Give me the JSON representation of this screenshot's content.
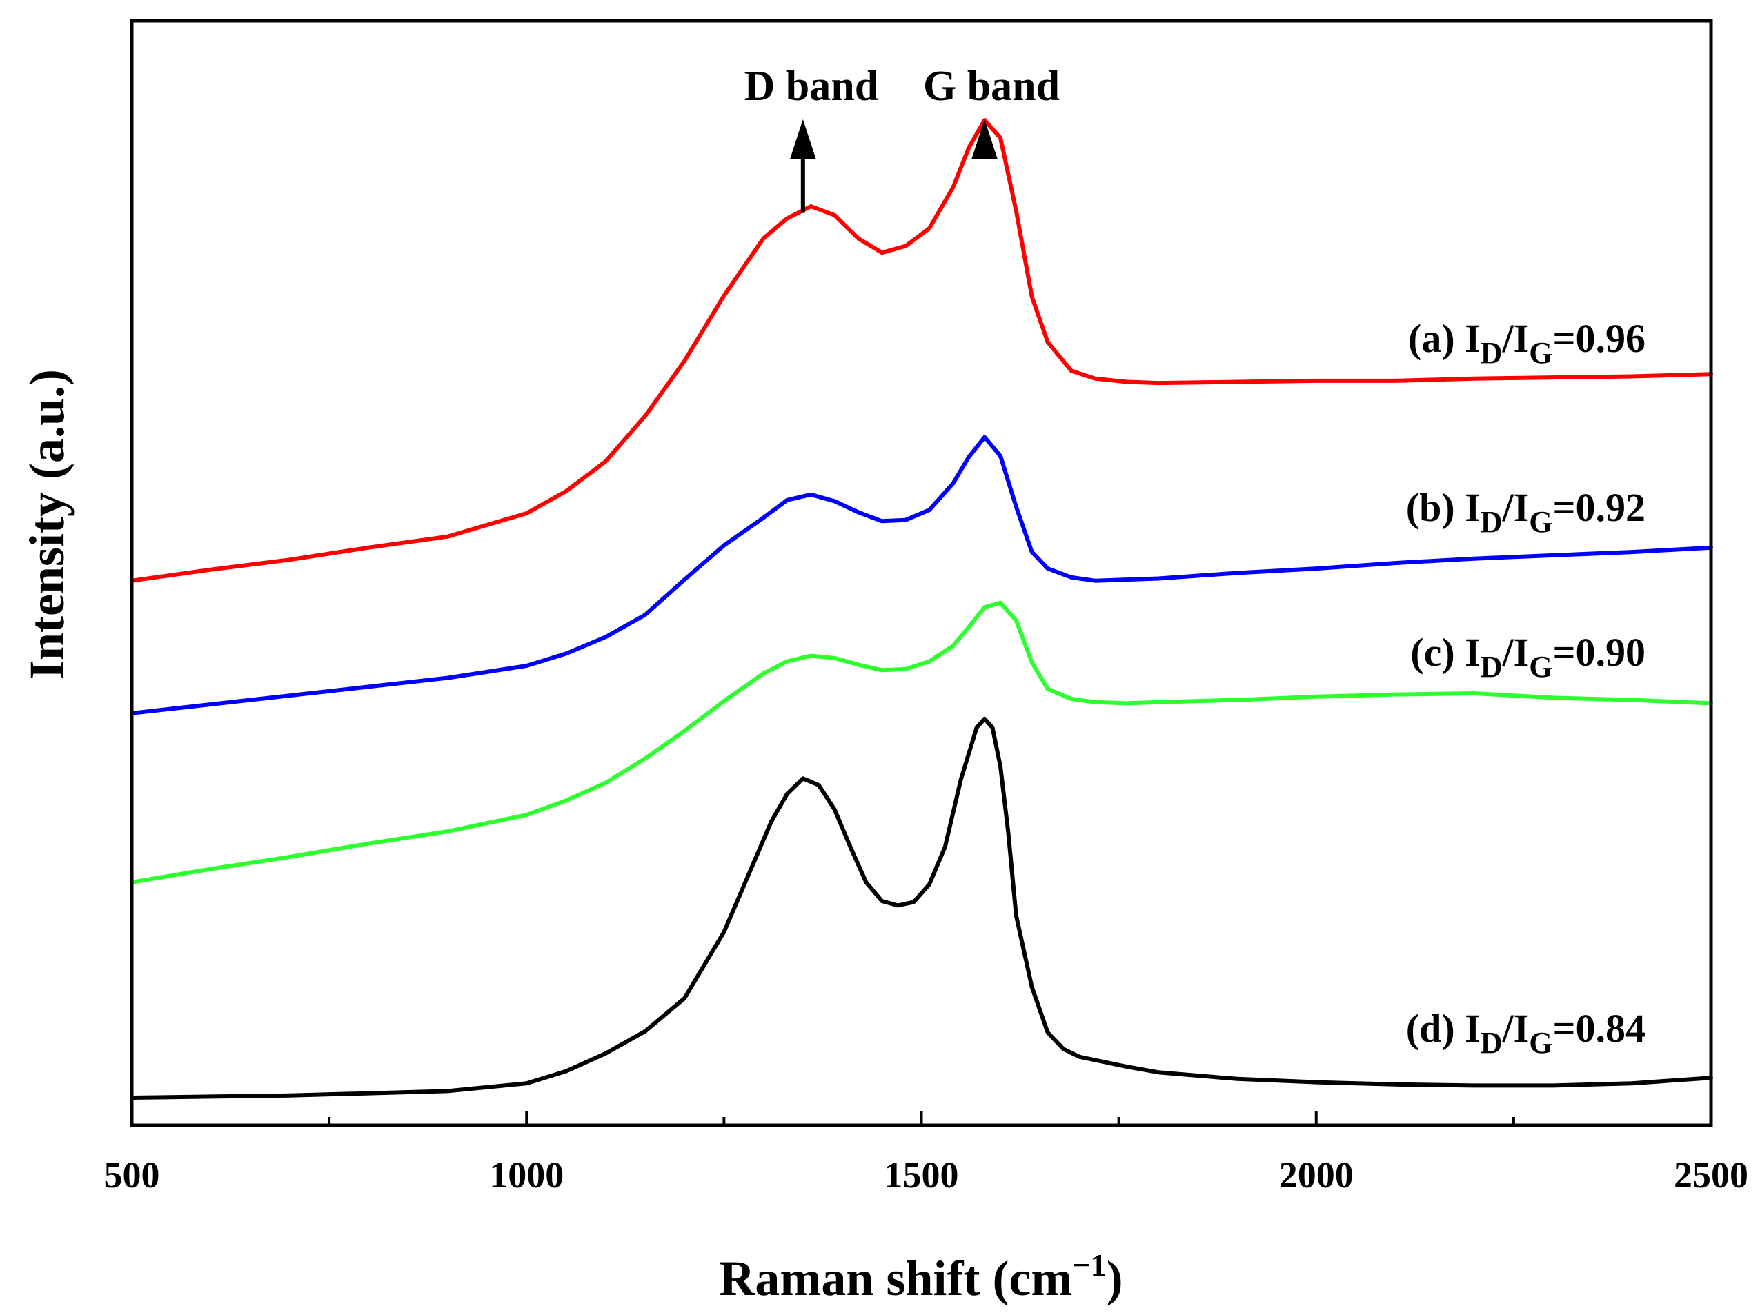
{
  "chart_data": {
    "type": "line",
    "title": "",
    "xlabel": "Raman shift (cm",
    "xlabel_sup": "−1",
    "xlabel_close": ")",
    "ylabel": "Intensity (a.u.)",
    "xlim": [
      500,
      2500
    ],
    "ylim": [
      0,
      100
    ],
    "xticks": [
      500,
      1000,
      1500,
      2000,
      2500
    ],
    "minor_xticks": [
      750,
      1250,
      1750,
      2250
    ],
    "yticks_shown": false,
    "grid": false,
    "annotations": [
      {
        "text": "D band",
        "x": 1350
      },
      {
        "text": "G band",
        "x": 1580
      }
    ],
    "series": [
      {
        "name": "(a) ID/IG=0.96",
        "label_prefix": "(a) I",
        "sub1": "D",
        "mid": "/I",
        "sub2": "G",
        "label_value": "=0.96",
        "color": "#ff0000",
        "x": [
          500,
          600,
          700,
          800,
          900,
          1000,
          1050,
          1100,
          1150,
          1200,
          1250,
          1300,
          1330,
          1360,
          1390,
          1420,
          1450,
          1480,
          1510,
          1540,
          1560,
          1580,
          1600,
          1620,
          1640,
          1660,
          1690,
          1720,
          1760,
          1800,
          1900,
          2000,
          2100,
          2200,
          2300,
          2400,
          2500
        ],
        "y": [
          49.3,
          50.3,
          51.2,
          52.3,
          53.3,
          55.4,
          57.4,
          60.1,
          64.2,
          69.2,
          75.1,
          80.3,
          82.1,
          83.2,
          82.4,
          80.3,
          79.0,
          79.6,
          81.2,
          84.9,
          88.5,
          91.0,
          89.4,
          82.8,
          75.0,
          70.9,
          68.3,
          67.6,
          67.3,
          67.2,
          67.3,
          67.4,
          67.4,
          67.6,
          67.7,
          67.8,
          68.0
        ]
      },
      {
        "name": "(b) ID/IG=0.92",
        "label_prefix": "(b) I",
        "sub1": "D",
        "mid": "/I",
        "sub2": "G",
        "label_value": "=0.92",
        "color": "#0000ff",
        "x": [
          500,
          600,
          700,
          800,
          900,
          1000,
          1050,
          1100,
          1150,
          1200,
          1250,
          1300,
          1330,
          1360,
          1390,
          1420,
          1450,
          1480,
          1510,
          1540,
          1560,
          1580,
          1600,
          1620,
          1640,
          1660,
          1690,
          1720,
          1760,
          1800,
          1900,
          2000,
          2100,
          2200,
          2300,
          2400,
          2500
        ],
        "y": [
          37.3,
          38.1,
          38.9,
          39.7,
          40.5,
          41.6,
          42.7,
          44.2,
          46.2,
          49.4,
          52.5,
          55.0,
          56.6,
          57.1,
          56.5,
          55.5,
          54.7,
          54.8,
          55.7,
          58.1,
          60.5,
          62.3,
          60.6,
          56.0,
          51.9,
          50.4,
          49.6,
          49.3,
          49.4,
          49.5,
          50.0,
          50.4,
          50.9,
          51.3,
          51.6,
          51.9,
          52.3
        ]
      },
      {
        "name": "(c) ID/IG=0.90",
        "label_prefix": "(c) I",
        "sub1": "D",
        "mid": "/I",
        "sub2": "G",
        "label_value": "=0.90",
        "color": "#2eff2e",
        "x": [
          500,
          600,
          700,
          800,
          900,
          1000,
          1050,
          1100,
          1150,
          1200,
          1250,
          1300,
          1330,
          1360,
          1390,
          1420,
          1450,
          1480,
          1510,
          1540,
          1560,
          1580,
          1600,
          1620,
          1640,
          1660,
          1690,
          1720,
          1760,
          1800,
          1900,
          2000,
          2100,
          2200,
          2300,
          2400,
          2500
        ],
        "y": [
          22.0,
          23.2,
          24.3,
          25.5,
          26.6,
          28.1,
          29.4,
          31.0,
          33.2,
          35.7,
          38.4,
          40.9,
          42.0,
          42.5,
          42.3,
          41.7,
          41.2,
          41.3,
          42.0,
          43.4,
          45.1,
          46.9,
          47.3,
          45.7,
          41.9,
          39.5,
          38.6,
          38.3,
          38.2,
          38.3,
          38.5,
          38.8,
          39.0,
          39.1,
          38.7,
          38.5,
          38.2
        ]
      },
      {
        "name": "(d) ID/IG=0.84",
        "label_prefix": "(d) I",
        "sub1": "D",
        "mid": "/I",
        "sub2": "G",
        "label_value": "=0.84",
        "color": "#000000",
        "x": [
          500,
          600,
          700,
          800,
          900,
          1000,
          1050,
          1100,
          1150,
          1200,
          1250,
          1280,
          1310,
          1330,
          1350,
          1370,
          1390,
          1410,
          1430,
          1450,
          1470,
          1490,
          1510,
          1530,
          1550,
          1570,
          1580,
          1590,
          1600,
          1610,
          1620,
          1640,
          1660,
          1680,
          1700,
          1720,
          1760,
          1800,
          1900,
          2000,
          2100,
          2200,
          2300,
          2400,
          2500
        ],
        "y": [
          2.5,
          2.6,
          2.7,
          2.9,
          3.1,
          3.8,
          4.9,
          6.5,
          8.5,
          11.5,
          17.5,
          22.5,
          27.5,
          30.0,
          31.4,
          30.8,
          28.6,
          25.2,
          22.0,
          20.3,
          19.9,
          20.2,
          21.8,
          25.2,
          31.3,
          36.0,
          36.8,
          36.0,
          32.5,
          26.5,
          19.0,
          12.5,
          8.4,
          6.9,
          6.2,
          5.9,
          5.3,
          4.8,
          4.2,
          3.9,
          3.7,
          3.6,
          3.6,
          3.8,
          4.3
        ]
      }
    ]
  }
}
